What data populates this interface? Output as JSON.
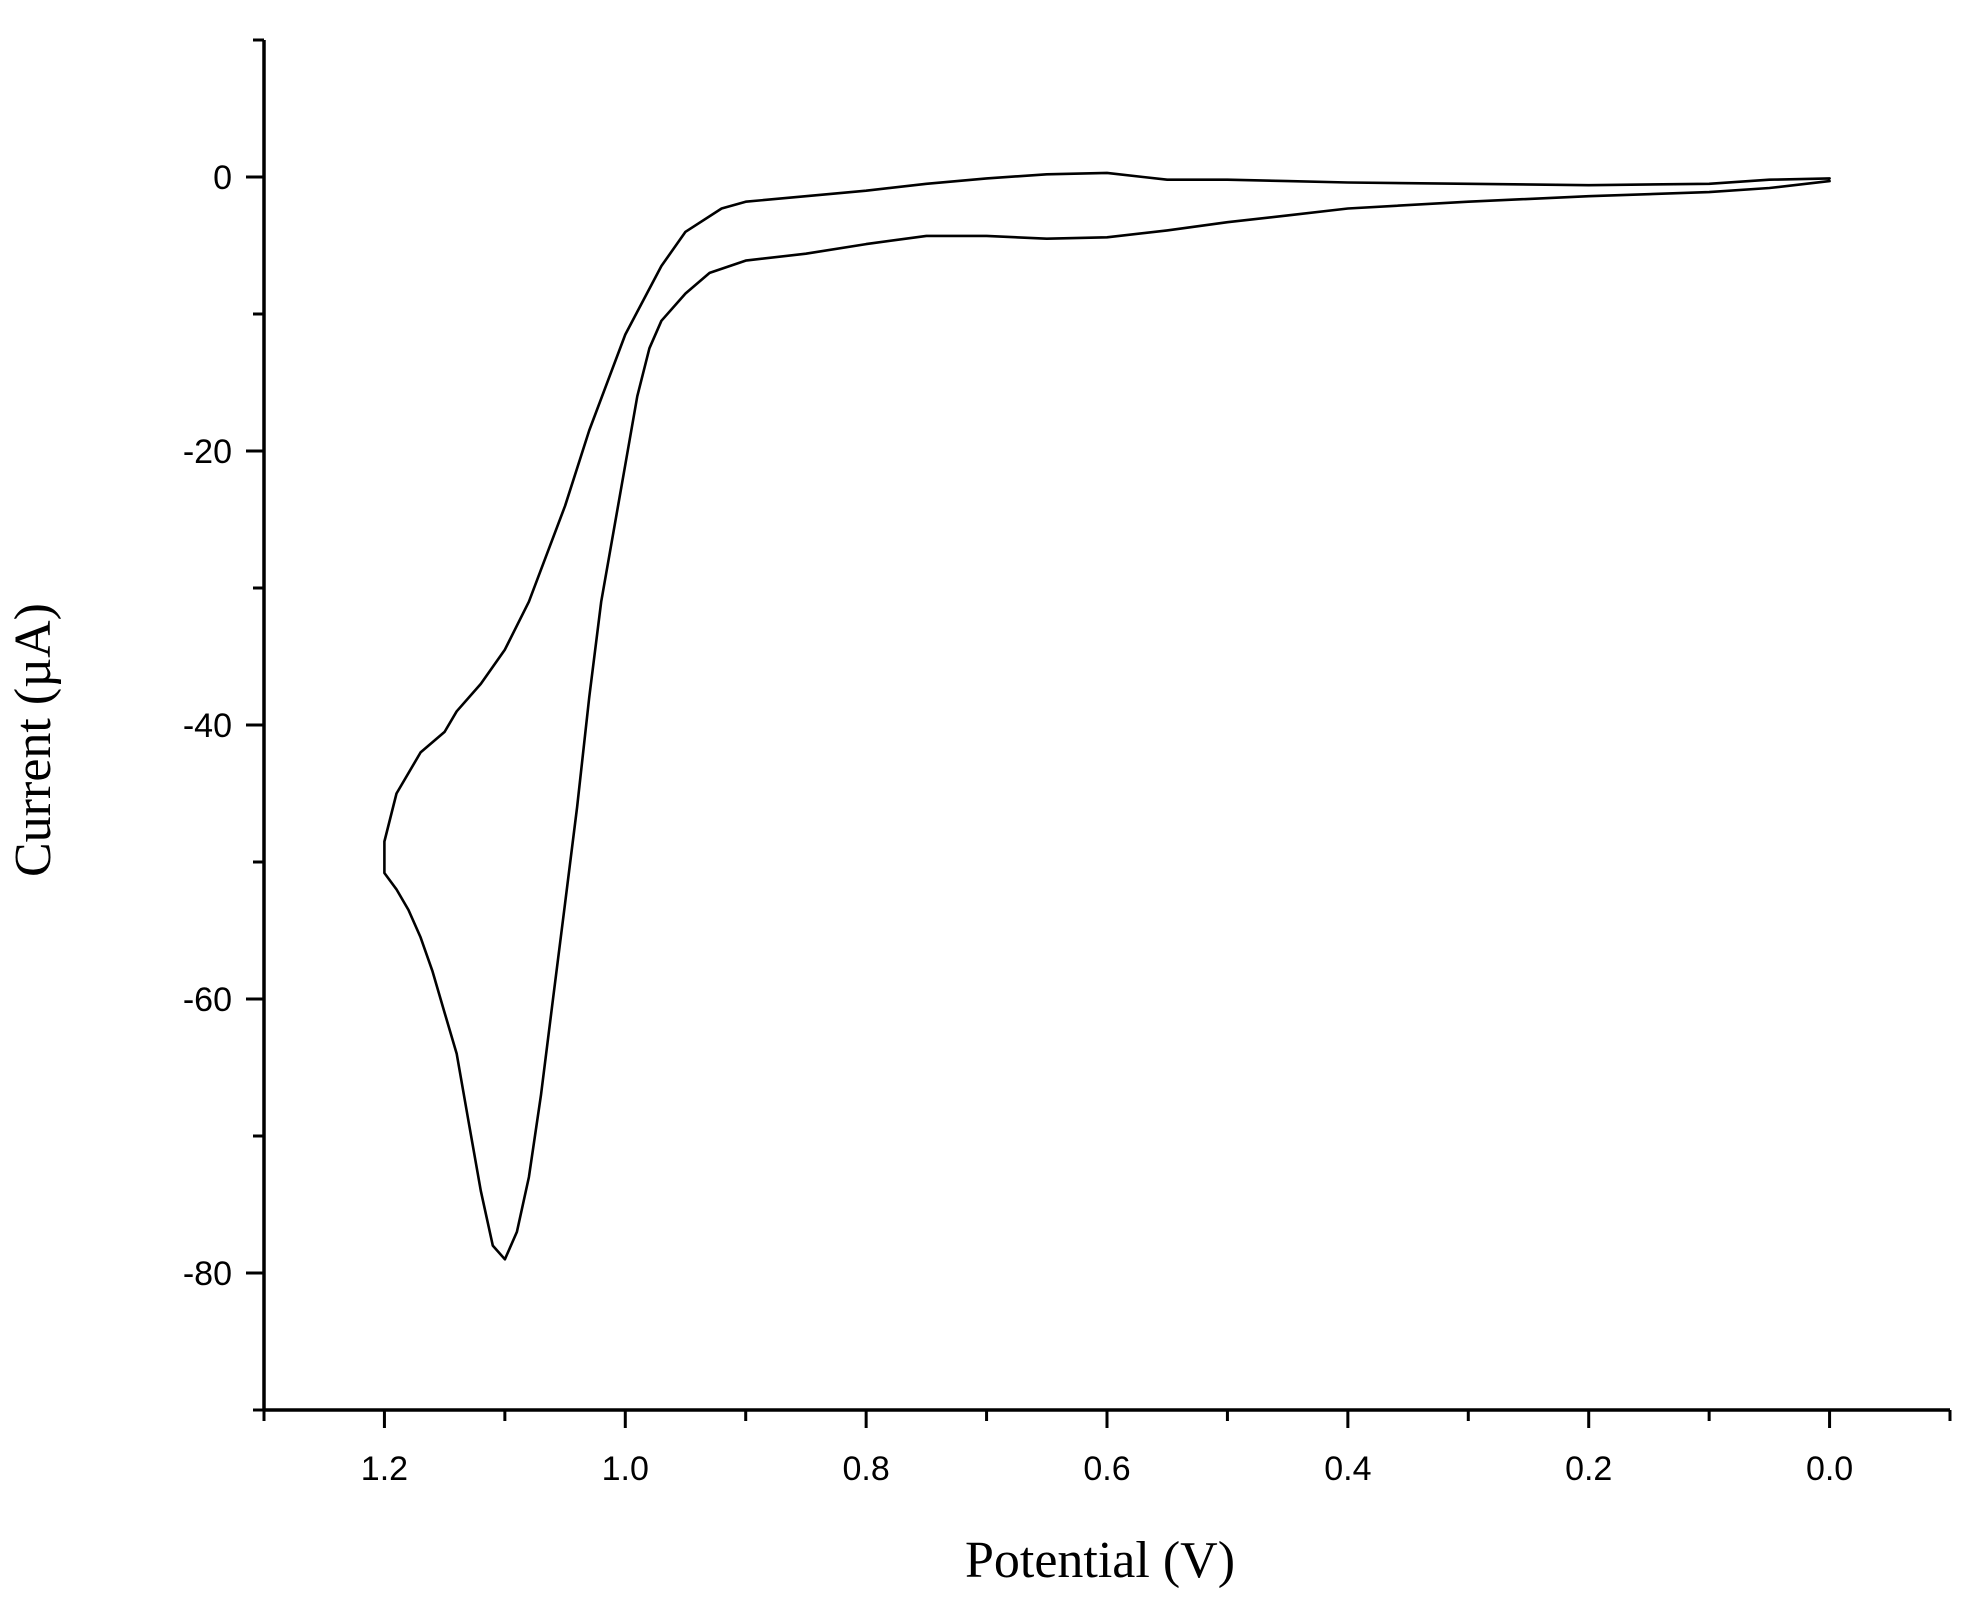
{
  "chart_data": {
    "type": "line",
    "title": "",
    "xlabel": "Potential (V)",
    "ylabel": "Current (µA)",
    "xlim": [
      1.3,
      -0.1
    ],
    "ylim": [
      -90,
      10
    ],
    "x_reversed": true,
    "x_ticks": [
      1.2,
      1.0,
      0.8,
      0.6,
      0.4,
      0.2,
      0.0
    ],
    "x_tick_labels": [
      "1.2",
      "1.0",
      "0.8",
      "0.6",
      "0.4",
      "0.2",
      "0.0"
    ],
    "x_minor_ticks": [
      1.3,
      1.1,
      0.9,
      0.7,
      0.5,
      0.3,
      0.1,
      -0.1
    ],
    "y_ticks": [
      0,
      -20,
      -40,
      -60,
      -80
    ],
    "y_tick_labels": [
      "0",
      "-20",
      "-40",
      "-60",
      "-80"
    ],
    "y_minor_ticks": [
      10,
      -10,
      -30,
      -50,
      -70,
      -90
    ],
    "grid": false,
    "line_color": "#000000",
    "series": [
      {
        "x": [
          0.0,
          0.05,
          0.1,
          0.2,
          0.3,
          0.4,
          0.45,
          0.5,
          0.55,
          0.6,
          0.65,
          0.7,
          0.75,
          0.8,
          0.85,
          0.9,
          0.93,
          0.95,
          0.97,
          0.98,
          0.99,
          1.0,
          1.02,
          1.03,
          1.04,
          1.05,
          1.06,
          1.07,
          1.08,
          1.09,
          1.1,
          1.11,
          1.12,
          1.13,
          1.14,
          1.15,
          1.16,
          1.17,
          1.18,
          1.19,
          1.2,
          1.2,
          1.19,
          1.17,
          1.15,
          1.14,
          1.12,
          1.1,
          1.08,
          1.05,
          1.03,
          1.0,
          0.97,
          0.95,
          0.92,
          0.9,
          0.85,
          0.8,
          0.75,
          0.7,
          0.65,
          0.6,
          0.57,
          0.55,
          0.5,
          0.45,
          0.4,
          0.3,
          0.2,
          0.1,
          0.05,
          0.0
        ],
        "y": [
          -0.3,
          -0.8,
          -1.1,
          -1.4,
          -1.8,
          -2.3,
          -2.8,
          -3.3,
          -3.9,
          -4.4,
          -4.5,
          -4.3,
          -4.3,
          -4.9,
          -5.6,
          -6.1,
          -7.0,
          -8.5,
          -10.5,
          -12.5,
          -16.0,
          -21.0,
          -31.0,
          -38.0,
          -46.0,
          -53.0,
          -60.0,
          -67.0,
          -73.0,
          -77.0,
          -79.0,
          -78.0,
          -74.0,
          -69.0,
          -64.0,
          -61.0,
          -58.0,
          -55.5,
          -53.5,
          -52.0,
          -50.8,
          -48.5,
          -45.0,
          -42.0,
          -40.5,
          -39.0,
          -37.0,
          -34.5,
          -31.0,
          -24.0,
          -18.5,
          -11.5,
          -6.5,
          -4.0,
          -2.3,
          -1.8,
          -1.4,
          -1.0,
          -0.5,
          -0.1,
          0.2,
          0.3,
          0.0,
          -0.2,
          -0.2,
          -0.3,
          -0.4,
          -0.5,
          -0.6,
          -0.5,
          -0.2,
          -0.1
        ]
      }
    ]
  }
}
